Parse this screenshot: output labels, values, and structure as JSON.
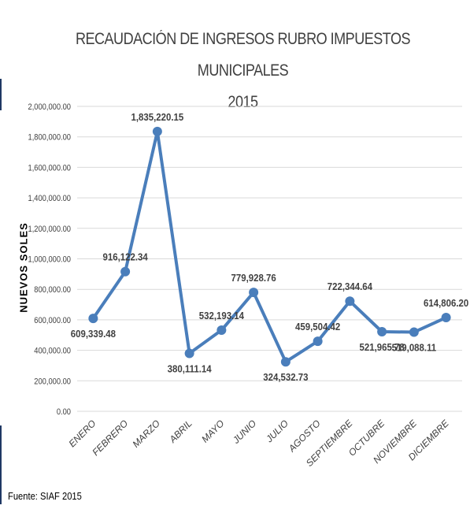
{
  "chart_data": {
    "type": "line",
    "title": "RECAUDACIÓN DE INGRESOS RUBRO IMPUESTOS MUNICIPALES",
    "subtitle": "2015",
    "xlabel": "",
    "ylabel": "NUEVOS SOLES",
    "categories": [
      "ENERO",
      "FEBRERO",
      "MARZO",
      "ABRIL",
      "MAYO",
      "JUNIO",
      "JULIO",
      "AGOSTO",
      "SEPTIEMBRE",
      "OCTUBRE",
      "NOVIEMBRE",
      "DICIEMBRE"
    ],
    "values": [
      609339.48,
      916122.34,
      1835220.15,
      380111.14,
      532193.14,
      779928.76,
      324532.73,
      459504.42,
      722344.64,
      521965.78,
      519088.11,
      614806.2
    ],
    "data_labels": [
      "609,339.48",
      "916,122.34",
      "1,835,220.15",
      "380,111.14",
      "532,193.14",
      "779,928.76",
      "324,532.73",
      "459,504.42",
      "722,344.64",
      "521,965.78",
      "519,088.11",
      "614,806.20"
    ],
    "ylim": [
      0,
      2000000
    ],
    "yticks": [
      0,
      200000,
      400000,
      600000,
      800000,
      1000000,
      1200000,
      1400000,
      1600000,
      1800000,
      2000000
    ],
    "ytick_labels": [
      "0.00",
      "200,000.00",
      "400,000.00",
      "600,000.00",
      "800,000.00",
      "1,000,000.00",
      "1,200,000.00",
      "1,400,000.00",
      "1,600,000.00",
      "1,800,000.00",
      "2,000,000.00"
    ],
    "grid": true,
    "legend": "none",
    "line_color": "#4a7ebb",
    "grid_color": "#d9d9d9"
  },
  "footer": {
    "source": "Fuente: SIAF 2015"
  }
}
